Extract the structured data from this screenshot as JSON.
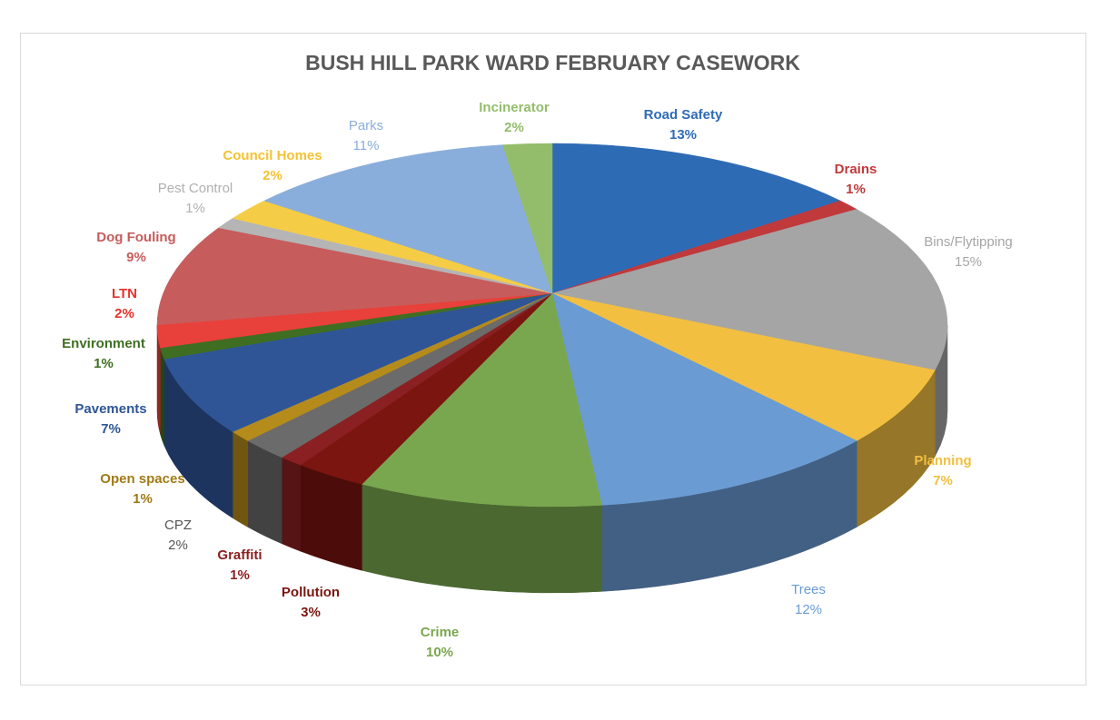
{
  "chart_data": {
    "type": "pie",
    "title": "BUSH HILL PARK WARD FEBRUARY CASEWORK",
    "style": "3d",
    "start": "top",
    "direction": "clockwise",
    "slices": [
      {
        "label": "Road Safety",
        "value": 13,
        "pct": "13%",
        "color": "#2e6bb5",
        "label_color": "#2e6bb5"
      },
      {
        "label": "Drains",
        "value": 1,
        "pct": "1%",
        "color": "#c0393b",
        "label_color": "#c0393b"
      },
      {
        "label": "Bins/Flytipping",
        "value": 15,
        "pct": "15%",
        "color": "#a5a5a5",
        "label_color": "#a5a5a5"
      },
      {
        "label": "Planning",
        "value": 7,
        "pct": "7%",
        "color": "#f2bf40",
        "label_color": "#f2bf40"
      },
      {
        "label": "Trees",
        "value": 12,
        "pct": "12%",
        "color": "#6a9bd3",
        "label_color": "#6a9bd3"
      },
      {
        "label": "Crime",
        "value": 10,
        "pct": "10%",
        "color": "#79a74f",
        "label_color": "#79a74f"
      },
      {
        "label": "Pollution",
        "value": 3,
        "pct": "3%",
        "color": "#7a1510",
        "label_color": "#7a1510"
      },
      {
        "label": "Graffiti",
        "value": 1,
        "pct": "1%",
        "color": "#8b2022",
        "label_color": "#8b2022"
      },
      {
        "label": "CPZ",
        "value": 2,
        "pct": "2%",
        "color": "#6b6b6b",
        "label_color": "#555555"
      },
      {
        "label": "Open spaces",
        "value": 1,
        "pct": "1%",
        "color": "#b58b1c",
        "label_color": "#a07a14"
      },
      {
        "label": "Pavements",
        "value": 7,
        "pct": "7%",
        "color": "#2f5597",
        "label_color": "#2f5597"
      },
      {
        "label": "Environment",
        "value": 1,
        "pct": "1%",
        "color": "#3f6e22",
        "label_color": "#3f6e22"
      },
      {
        "label": "LTN",
        "value": 2,
        "pct": "2%",
        "color": "#e8403a",
        "label_color": "#e8302a"
      },
      {
        "label": "Dog Fouling",
        "value": 9,
        "pct": "9%",
        "color": "#c65c5c",
        "label_color": "#c65c5c"
      },
      {
        "label": "Pest Control",
        "value": 1,
        "pct": "1%",
        "color": "#b5b5b5",
        "label_color": "#b0b0b0"
      },
      {
        "label": "Council Homes",
        "value": 2,
        "pct": "2%",
        "color": "#f5cc45",
        "label_color": "#f5c230"
      },
      {
        "label": "Parks",
        "value": 11,
        "pct": "11%",
        "color": "#8aaedb",
        "label_color": "#8aaedb"
      },
      {
        "label": "Incinerator",
        "value": 2,
        "pct": "2%",
        "color": "#93bd6a",
        "label_color": "#93bd6a"
      }
    ]
  }
}
